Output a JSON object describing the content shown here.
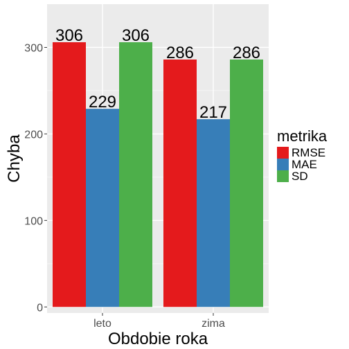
{
  "chart_data": {
    "type": "bar",
    "xlabel": "Obdobie roka",
    "ylabel": "Chyba",
    "categories": [
      "leto",
      "zima"
    ],
    "yticks": [
      0,
      100,
      200,
      300
    ],
    "ylim": [
      -7,
      350
    ],
    "legend": {
      "title": "metrika",
      "position": "right"
    },
    "series": [
      {
        "name": "RMSE",
        "color": "#e41a1c",
        "values": [
          306,
          286
        ],
        "labels": [
          "306",
          "286"
        ]
      },
      {
        "name": "MAE",
        "color": "#377eb8",
        "values": [
          229,
          217
        ],
        "labels": [
          "229",
          "217"
        ]
      },
      {
        "name": "SD",
        "color": "#4daf4a",
        "values": [
          306,
          286
        ],
        "labels": [
          "306",
          "286"
        ]
      }
    ],
    "grid": true,
    "panel_background": "#ebebeb"
  }
}
